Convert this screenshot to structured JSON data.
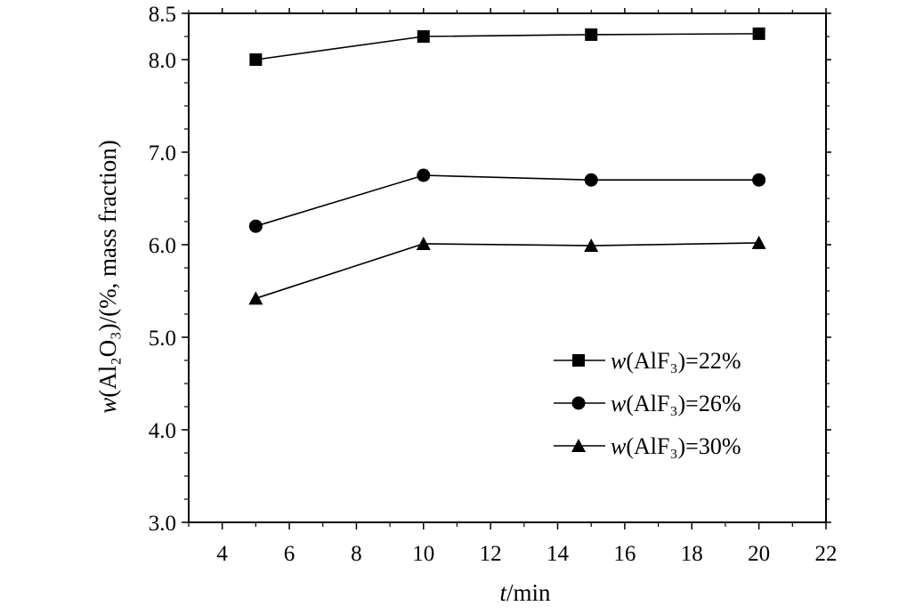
{
  "chart_data": {
    "type": "line",
    "title": "",
    "xlabel": {
      "italic": "t",
      "rest": "/min"
    },
    "ylabel": {
      "italic": "w",
      "rest": "(Al₂O₃)/(%, mass fraction)"
    },
    "xlim": [
      3,
      22
    ],
    "ylim": [
      3.0,
      8.5
    ],
    "xticks": [
      4,
      6,
      8,
      10,
      12,
      14,
      16,
      18,
      20,
      22
    ],
    "yticks": [
      3.0,
      4.0,
      5.0,
      6.0,
      7.0,
      8.0,
      8.5
    ],
    "ytick_labels": [
      "3.0",
      "4.0",
      "5.0",
      "6.0",
      "7.0",
      "8.0",
      "8.5"
    ],
    "grid": false,
    "legend_position": "bottom-right",
    "x": [
      5,
      10,
      15,
      20
    ],
    "series": [
      {
        "name": "w(AlF₃)=22%",
        "italic": "w",
        "rest": "(AlF₃)=22%",
        "marker": "square",
        "values": [
          8.0,
          8.25,
          8.27,
          8.28
        ]
      },
      {
        "name": "w(AlF₃)=26%",
        "italic": "w",
        "rest": "(AlF₃)=26%",
        "marker": "circle",
        "values": [
          6.2,
          6.75,
          6.7,
          6.7
        ]
      },
      {
        "name": "w(AlF₃)=30%",
        "italic": "w",
        "rest": "(AlF₃)=30%",
        "marker": "triangle",
        "values": [
          5.42,
          6.01,
          5.99,
          6.02
        ]
      }
    ]
  }
}
